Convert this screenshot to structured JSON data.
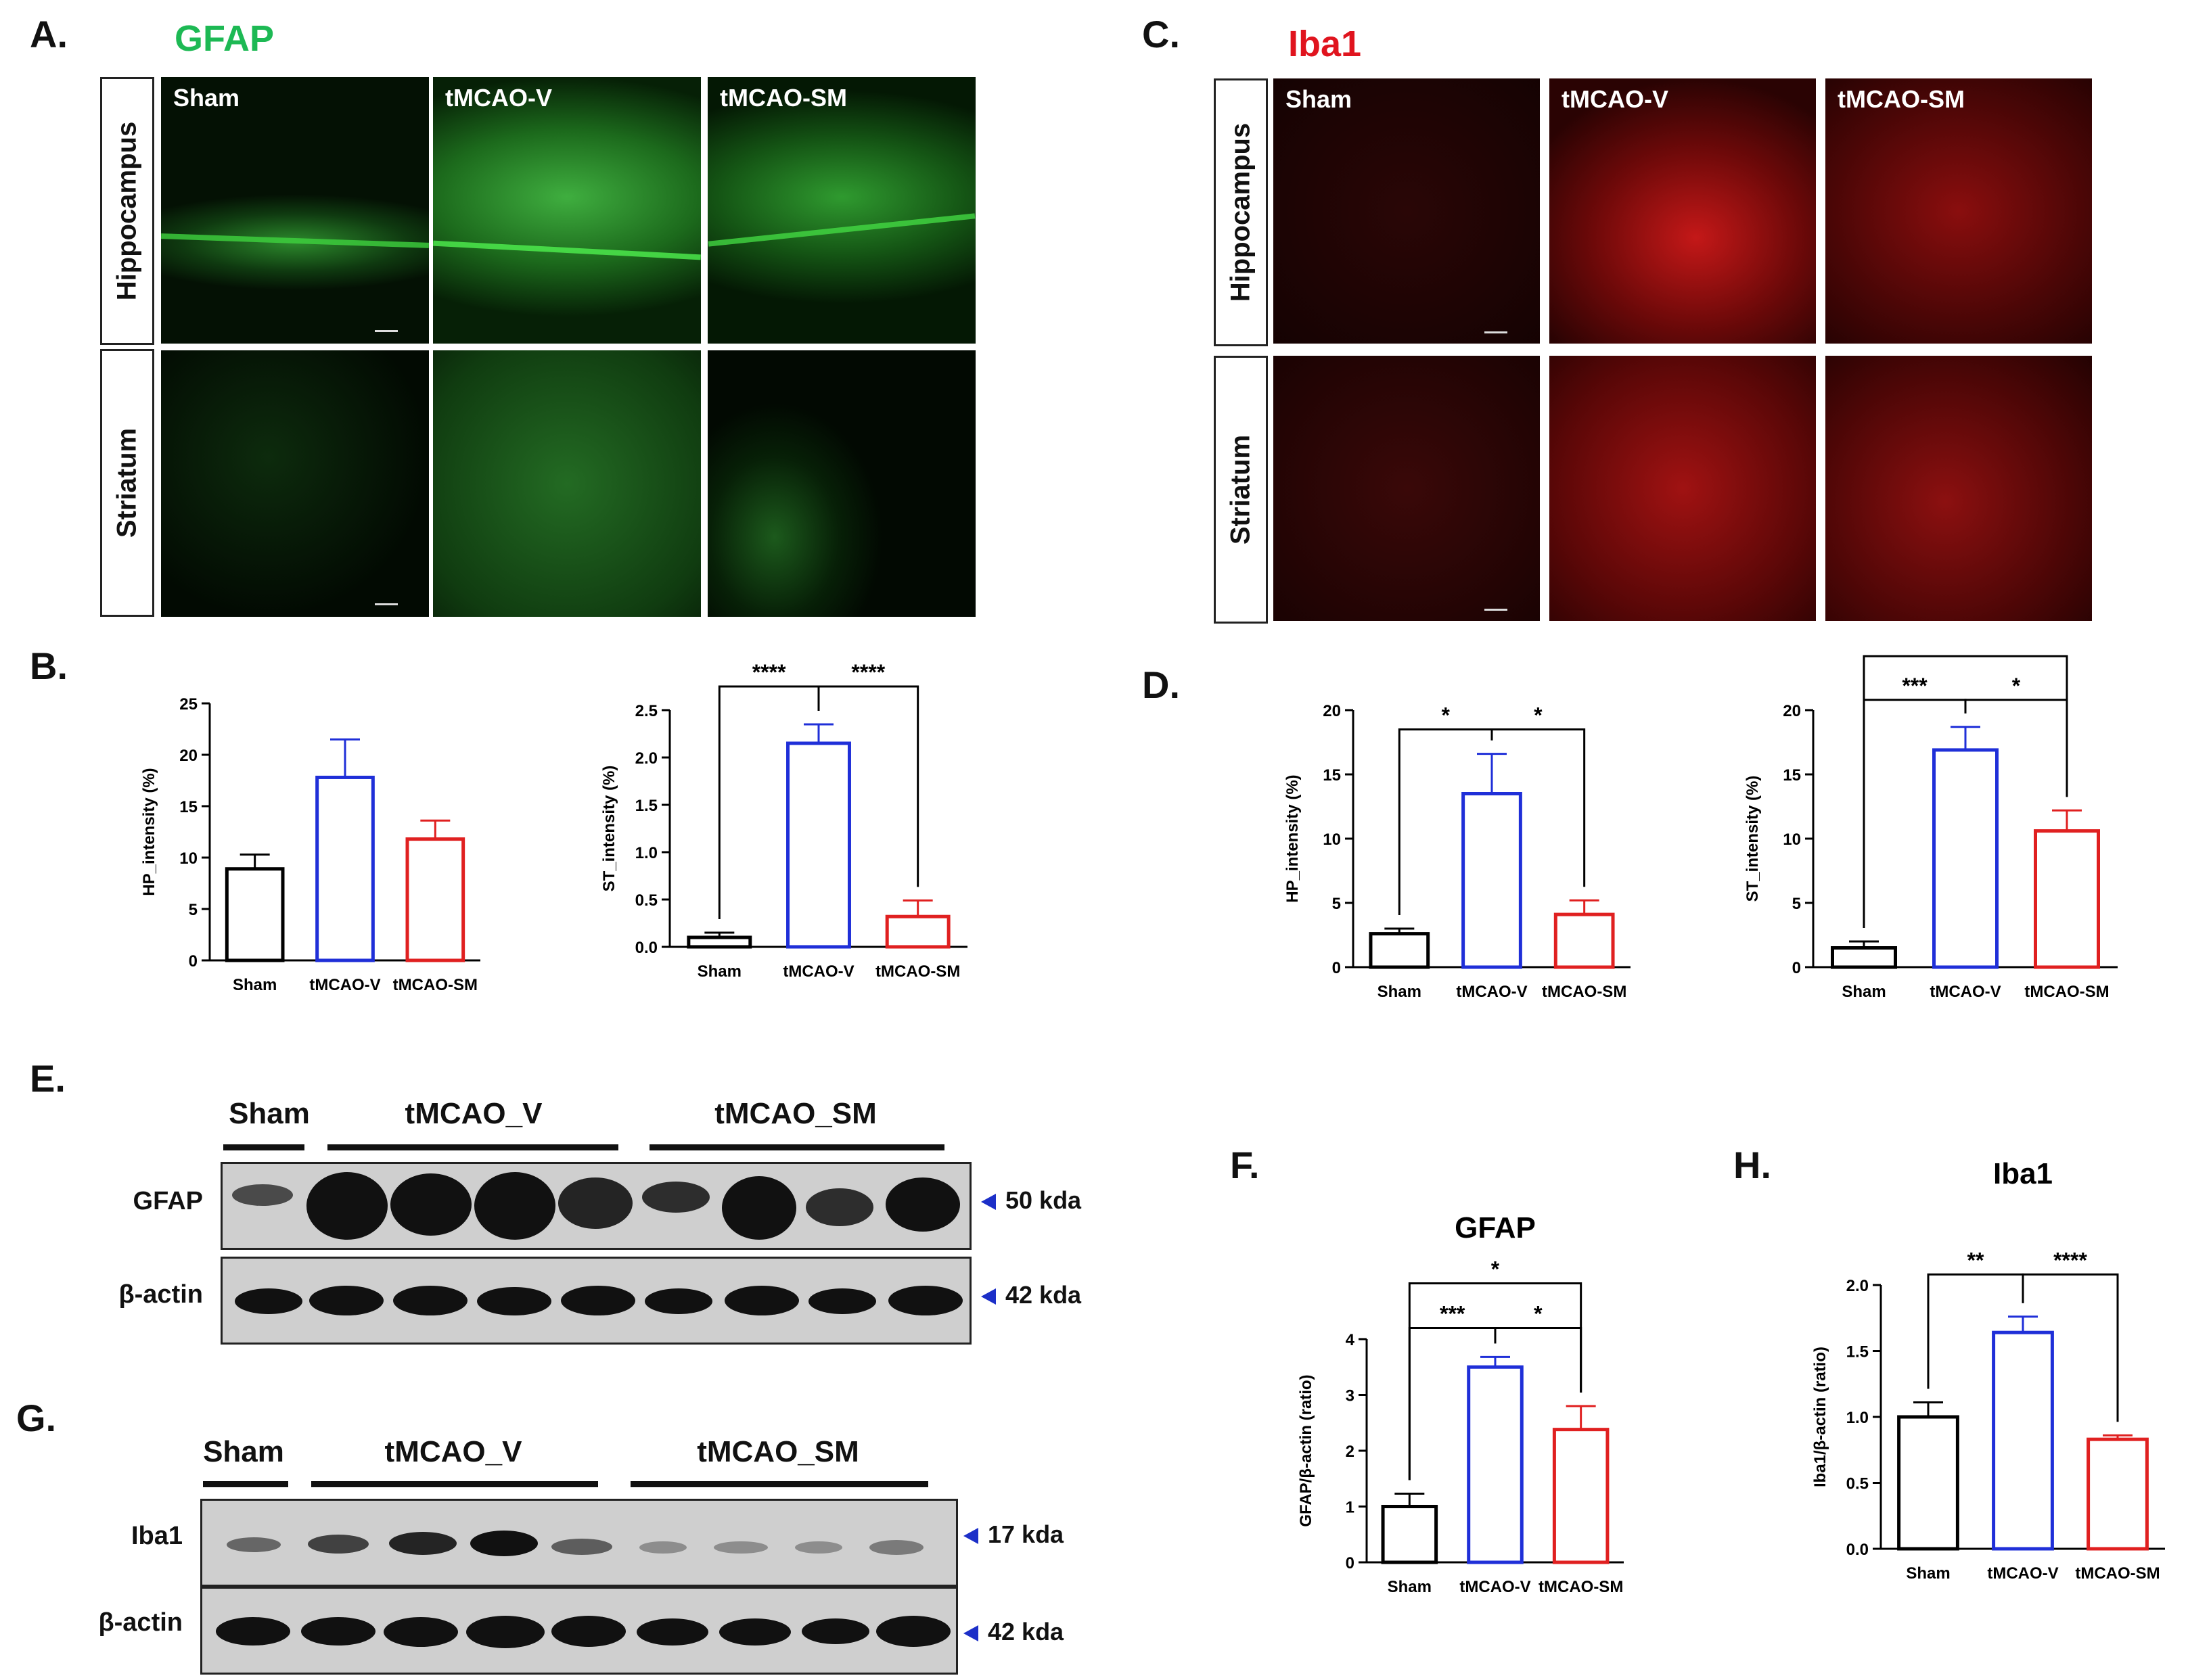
{
  "panel_labels": {
    "A": "A.",
    "B": "B.",
    "C": "C.",
    "D": "D.",
    "E": "E.",
    "F": "F.",
    "G": "G.",
    "H": "H."
  },
  "stains": {
    "gfap": "GFAP",
    "iba1": "Iba1"
  },
  "colors": {
    "gfap_green": "#1db954",
    "iba1_red": "#e0141e",
    "sham": "#000000",
    "tmcao_v": "#1f2fd8",
    "tmcao_sm": "#e02020",
    "arrow": "#1c2fc8"
  },
  "micrograph_columns": [
    "Sham",
    "tMCAO-V",
    "tMCAO-SM"
  ],
  "micrograph_rows": [
    "Hippocampus",
    "Striatum"
  ],
  "blots": {
    "E": {
      "groups": [
        "Sham",
        "tMCAO_V",
        "tMCAO_SM"
      ],
      "rows": [
        {
          "protein": "GFAP",
          "kda": "50 kda"
        },
        {
          "protein": "β-actin",
          "kda": "42 kda"
        }
      ]
    },
    "G": {
      "groups": [
        "Sham",
        "tMCAO_V",
        "tMCAO_SM"
      ],
      "rows": [
        {
          "protein": "Iba1",
          "kda": "17 kda"
        },
        {
          "protein": "β-actin",
          "kda": "42 kda"
        }
      ]
    }
  },
  "chart_data": [
    {
      "id": "B1",
      "type": "bar",
      "categories": [
        "Sham",
        "tMCAO-V",
        "tMCAO-SM"
      ],
      "values": [
        8.9,
        17.8,
        11.8
      ],
      "errors": [
        1.4,
        3.7,
        1.8
      ],
      "ylabel": "HP_intensity (%)",
      "ylim": [
        0,
        25
      ],
      "yticks": [
        0,
        5,
        10,
        15,
        20,
        25
      ],
      "significance": []
    },
    {
      "id": "B2",
      "type": "bar",
      "categories": [
        "Sham",
        "tMCAO-V",
        "tMCAO-SM"
      ],
      "values": [
        0.1,
        2.15,
        0.32
      ],
      "errors": [
        0.05,
        0.2,
        0.17
      ],
      "ylabel": "ST_intensity (%)",
      "ylim": [
        0,
        2.5
      ],
      "yticks": [
        0.0,
        0.5,
        1.0,
        1.5,
        2.0,
        2.5
      ],
      "significance": [
        {
          "from": 0,
          "to": 1,
          "label": "****",
          "level": 2.75
        },
        {
          "from": 1,
          "to": 2,
          "label": "****",
          "level": 2.75
        }
      ]
    },
    {
      "id": "D1",
      "type": "bar",
      "categories": [
        "Sham",
        "tMCAO-V",
        "tMCAO-SM"
      ],
      "values": [
        2.6,
        13.5,
        4.1
      ],
      "errors": [
        0.4,
        3.1,
        1.1
      ],
      "ylabel": "HP_intensity (%)",
      "ylim": [
        0,
        20
      ],
      "yticks": [
        0,
        5,
        10,
        15,
        20
      ],
      "significance": [
        {
          "from": 0,
          "to": 1,
          "label": "*",
          "level": 18.5
        },
        {
          "from": 1,
          "to": 2,
          "label": "*",
          "level": 18.5
        }
      ]
    },
    {
      "id": "D2",
      "type": "bar",
      "categories": [
        "Sham",
        "tMCAO-V",
        "tMCAO-SM"
      ],
      "values": [
        1.5,
        16.9,
        10.6
      ],
      "errors": [
        0.5,
        1.8,
        1.6
      ],
      "ylabel": "ST_intensity (%)",
      "ylim": [
        0,
        20
      ],
      "yticks": [
        0,
        5,
        10,
        15,
        20
      ],
      "significance": [
        {
          "from": 0,
          "to": 1,
          "label": "***",
          "level": 20.8
        },
        {
          "from": 1,
          "to": 2,
          "label": "*",
          "level": 20.8
        },
        {
          "from": 0,
          "to": 2,
          "label": "",
          "level": 24.2
        }
      ]
    },
    {
      "id": "F",
      "type": "bar",
      "title": "GFAP",
      "categories": [
        "Sham",
        "tMCAO-V",
        "tMCAO-SM"
      ],
      "values": [
        1.0,
        3.5,
        2.38
      ],
      "errors": [
        0.23,
        0.18,
        0.42
      ],
      "ylabel": "GFAP/β-actin (ratio)",
      "ylim": [
        0,
        4
      ],
      "yticks": [
        0,
        1,
        2,
        3,
        4
      ],
      "significance": [
        {
          "from": 0,
          "to": 1,
          "label": "***",
          "level": 4.2
        },
        {
          "from": 1,
          "to": 2,
          "label": "*",
          "level": 4.2
        },
        {
          "from": 0,
          "to": 2,
          "label": "*",
          "level": 5.0
        }
      ]
    },
    {
      "id": "H",
      "type": "bar",
      "title": "Iba1",
      "categories": [
        "Sham",
        "tMCAO-V",
        "tMCAO-SM"
      ],
      "values": [
        1.0,
        1.64,
        0.83
      ],
      "errors": [
        0.11,
        0.12,
        0.03
      ],
      "ylabel": "Iba1/β-actin (ratio)",
      "ylim": [
        0,
        2.0
      ],
      "yticks": [
        0.0,
        0.5,
        1.0,
        1.5,
        2.0
      ],
      "significance": [
        {
          "from": 0,
          "to": 1,
          "label": "**",
          "level": 2.08
        },
        {
          "from": 1,
          "to": 2,
          "label": "****",
          "level": 2.08
        }
      ]
    }
  ]
}
